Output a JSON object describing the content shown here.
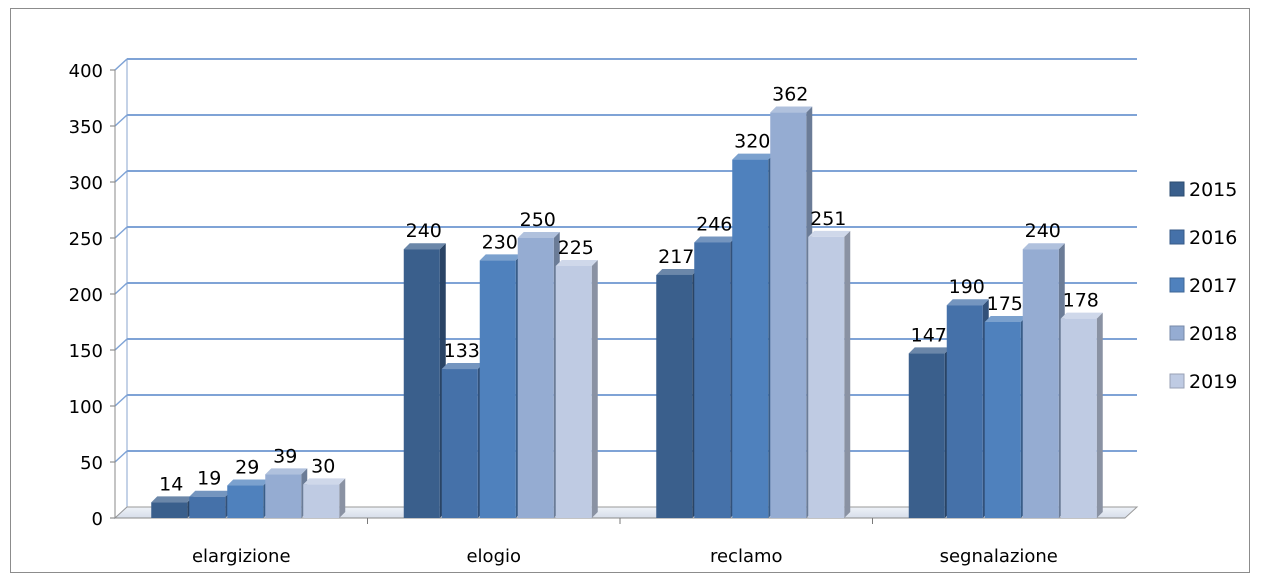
{
  "chart_data": {
    "type": "bar",
    "style": "3d-clustered",
    "categories": [
      "elargizione",
      "elogio",
      "reclamo",
      "segnalazione"
    ],
    "series": [
      {
        "name": "2015",
        "values": [
          14,
          240,
          217,
          147
        ],
        "color": "#3a5f8c"
      },
      {
        "name": "2016",
        "values": [
          19,
          133,
          246,
          190
        ],
        "color": "#4571a9"
      },
      {
        "name": "2017",
        "values": [
          29,
          230,
          320,
          175
        ],
        "color": "#4f81bd"
      },
      {
        "name": "2018",
        "values": [
          39,
          250,
          362,
          240
        ],
        "color": "#95acd2"
      },
      {
        "name": "2019",
        "values": [
          30,
          225,
          251,
          178
        ],
        "color": "#bfcbe3"
      }
    ],
    "y_ticks": [
      "0",
      "50",
      "100",
      "150",
      "200",
      "250",
      "300",
      "350",
      "400"
    ],
    "ylim": [
      0,
      400
    ],
    "grid": true,
    "legend_position": "right",
    "title": "",
    "xlabel": "",
    "ylabel": ""
  }
}
